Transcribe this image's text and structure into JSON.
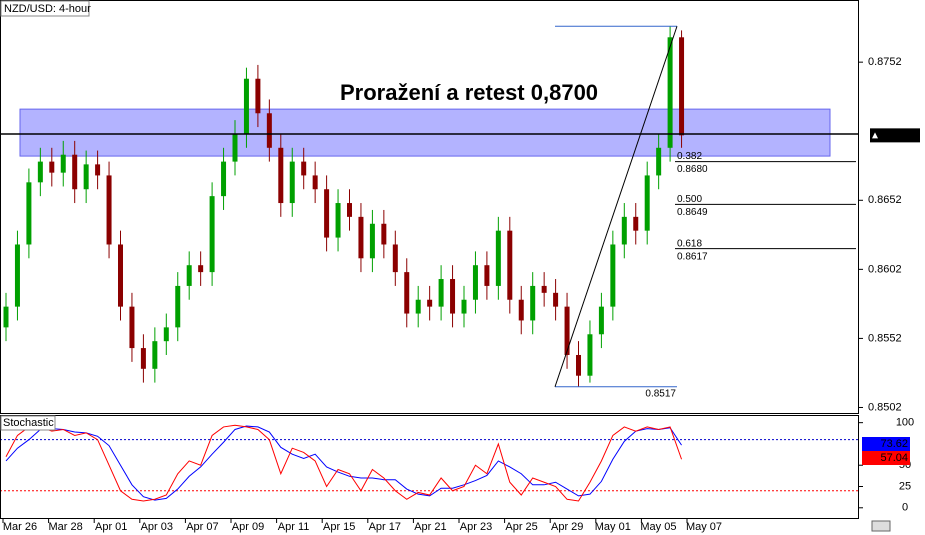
{
  "chart_data": {
    "type": "candlestick",
    "title": "NZD/USD: 4-hour",
    "annotation": "Proražení a retest 0,8700",
    "x_labels": [
      "Mar 26",
      "Mar 28",
      "Apr 01",
      "Apr 03",
      "Apr 07",
      "Apr 09",
      "Apr 11",
      "Apr 15",
      "Apr 17",
      "Apr 21",
      "Apr 23",
      "Apr 25",
      "Apr 29",
      "May 01",
      "May 05",
      "May 07"
    ],
    "series": {
      "open": [
        0.856,
        0.8575,
        0.862,
        0.8665,
        0.868,
        0.8672,
        0.8685,
        0.866,
        0.8678,
        0.867,
        0.862,
        0.8575,
        0.8545,
        0.853,
        0.855,
        0.856,
        0.859,
        0.8605,
        0.86,
        0.8655,
        0.868,
        0.87,
        0.874,
        0.8715,
        0.869,
        0.865,
        0.868,
        0.867,
        0.866,
        0.8625,
        0.865,
        0.864,
        0.861,
        0.8635,
        0.862,
        0.86,
        0.857,
        0.858,
        0.8575,
        0.8595,
        0.857,
        0.858,
        0.8605,
        0.859,
        0.863,
        0.858,
        0.8565,
        0.859,
        0.8585,
        0.8575,
        0.854,
        0.8525,
        0.8555,
        0.8575,
        0.862,
        0.864,
        0.863,
        0.867,
        0.869,
        0.877
      ],
      "high": [
        0.8585,
        0.863,
        0.8675,
        0.869,
        0.869,
        0.8695,
        0.8695,
        0.8688,
        0.8688,
        0.868,
        0.863,
        0.8585,
        0.8555,
        0.856,
        0.857,
        0.86,
        0.8615,
        0.8615,
        0.8665,
        0.869,
        0.871,
        0.8748,
        0.875,
        0.8725,
        0.87,
        0.869,
        0.869,
        0.868,
        0.867,
        0.866,
        0.866,
        0.865,
        0.8645,
        0.8645,
        0.863,
        0.861,
        0.859,
        0.859,
        0.8605,
        0.8605,
        0.859,
        0.8615,
        0.8615,
        0.864,
        0.864,
        0.859,
        0.86,
        0.86,
        0.8595,
        0.8585,
        0.855,
        0.8565,
        0.8585,
        0.863,
        0.865,
        0.865,
        0.868,
        0.87,
        0.8778,
        0.8775
      ],
      "low": [
        0.855,
        0.8565,
        0.861,
        0.8655,
        0.8662,
        0.8662,
        0.865,
        0.865,
        0.866,
        0.861,
        0.8565,
        0.8535,
        0.852,
        0.852,
        0.854,
        0.855,
        0.858,
        0.859,
        0.859,
        0.8645,
        0.867,
        0.869,
        0.8705,
        0.868,
        0.864,
        0.864,
        0.866,
        0.865,
        0.8615,
        0.8615,
        0.863,
        0.86,
        0.86,
        0.861,
        0.859,
        0.856,
        0.856,
        0.8565,
        0.8565,
        0.856,
        0.856,
        0.857,
        0.858,
        0.858,
        0.857,
        0.8555,
        0.8555,
        0.8575,
        0.8565,
        0.853,
        0.8517,
        0.852,
        0.8545,
        0.8565,
        0.861,
        0.862,
        0.862,
        0.866,
        0.868,
        0.869
      ],
      "close": [
        0.8575,
        0.862,
        0.8665,
        0.868,
        0.8672,
        0.8685,
        0.866,
        0.8678,
        0.867,
        0.862,
        0.8575,
        0.8545,
        0.853,
        0.855,
        0.856,
        0.859,
        0.8605,
        0.86,
        0.8655,
        0.868,
        0.87,
        0.874,
        0.8715,
        0.869,
        0.865,
        0.868,
        0.867,
        0.866,
        0.8625,
        0.865,
        0.864,
        0.861,
        0.8635,
        0.862,
        0.86,
        0.857,
        0.858,
        0.8575,
        0.8595,
        0.857,
        0.858,
        0.8605,
        0.859,
        0.863,
        0.858,
        0.8565,
        0.859,
        0.8585,
        0.8575,
        0.854,
        0.8525,
        0.8555,
        0.8575,
        0.862,
        0.864,
        0.863,
        0.867,
        0.869,
        0.877,
        0.8699
      ]
    },
    "up_color": "#00a000",
    "down_color": "#8b0000",
    "ylim": [
      0.8498,
      0.8797
    ],
    "yticks": [
      0.8502,
      0.8552,
      0.8602,
      0.8652,
      0.8752
    ],
    "last_price": 0.8699,
    "resistance": 0.87,
    "zone": [
      0.8684,
      0.8718
    ],
    "zone_color": "#9999ff",
    "swing_high": 0.8778,
    "swing_low": 0.8517,
    "fibonacci": [
      {
        "ratio": 0.382,
        "value": {
          "value": 0.868,
          "label": "0.8680"
        }
      },
      {
        "ratio": {
          "value": 0.5,
          "label": "0.500"
        },
        "value": 0.8649
      },
      {
        "ratio": 0.618,
        "value": 0.8617
      }
    ],
    "stochastic": {
      "title": "Stochastic",
      "ylim": [
        -12,
        109
      ],
      "yticks": [
        0,
        25,
        50,
        100
      ],
      "levels": [
        {
          "value": 20,
          "color": "#ff0000"
        },
        {
          "value": 80,
          "color": "#0000cc"
        }
      ],
      "series": [
        {
          "color": "#0000ff",
          "values": [
            55,
            70,
            80,
            92,
            93,
            92,
            89,
            88,
            84,
            73,
            50,
            27,
            13,
            9,
            11,
            22,
            37,
            48,
            63,
            77,
            92,
            96,
            95,
            89,
            71,
            63,
            58,
            63,
            48,
            42,
            37,
            35,
            35,
            33,
            33,
            22,
            16,
            14,
            23,
            23,
            27,
            32,
            38,
            55,
            48,
            40,
            27,
            27,
            30,
            22,
            14,
            16,
            31,
            57,
            78,
            90,
            93,
            92,
            94,
            73.62
          ]
        },
        {
          "color": "#ff0000",
          "values": [
            60,
            85,
            95,
            95,
            90,
            92,
            85,
            88,
            80,
            50,
            20,
            10,
            8,
            10,
            15,
            40,
            55,
            50,
            85,
            95,
            97,
            95,
            92,
            80,
            40,
            70,
            65,
            55,
            25,
            45,
            40,
            20,
            45,
            35,
            20,
            10,
            18,
            15,
            35,
            20,
            25,
            50,
            40,
            75,
            30,
            15,
            35,
            30,
            25,
            10,
            8,
            30,
            55,
            85,
            95,
            90,
            95,
            92,
            95,
            57.04
          ]
        }
      ]
    }
  }
}
